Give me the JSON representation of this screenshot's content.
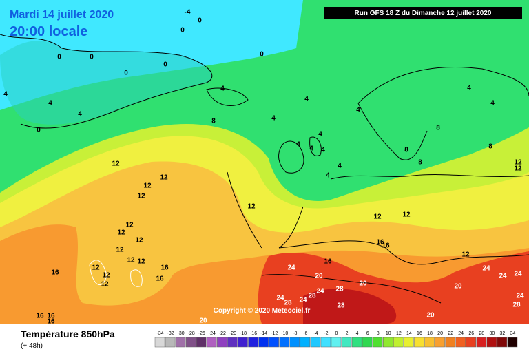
{
  "header": {
    "date": "Mardi 14 juillet 2020",
    "time": "20:00 locale",
    "run": "Run GFS 18 Z du Dimanche 12 juillet 2020",
    "copyright": "Copyright © 2020 Meteociel.fr"
  },
  "footer": {
    "title": "Température 850hPa",
    "lead": "(+ 48h)"
  },
  "scale": {
    "ticks": [
      -34,
      -32,
      -30,
      -28,
      -26,
      -24,
      -22,
      -20,
      -18,
      -16,
      -14,
      -12,
      -10,
      -8,
      -6,
      -4,
      -2,
      0,
      2,
      4,
      6,
      8,
      10,
      12,
      14,
      16,
      18,
      20,
      22,
      24,
      26,
      28,
      30,
      32,
      34
    ],
    "colors": [
      "#d8d8d8",
      "#b8b8b8",
      "#a070a8",
      "#805088",
      "#603068",
      "#b060c0",
      "#9040c0",
      "#6030c0",
      "#4020d0",
      "#2020e0",
      "#0030f0",
      "#0050ff",
      "#0070ff",
      "#0090ff",
      "#00b0ff",
      "#20c8ff",
      "#40e0ff",
      "#60f0f0",
      "#40e8c0",
      "#30e080",
      "#30d850",
      "#50e030",
      "#90e830",
      "#c0f030",
      "#e8f030",
      "#f8e030",
      "#f8c030",
      "#f8a030",
      "#f08020",
      "#f06020",
      "#e84020",
      "#d82020",
      "#b01010",
      "#800808",
      "#200000"
    ]
  },
  "map": {
    "isotherm_labels": [
      -4,
      0,
      0,
      0,
      0,
      0,
      0,
      0,
      4,
      4,
      4,
      0,
      4,
      4,
      4,
      8,
      4,
      4,
      4,
      4,
      4,
      4,
      4,
      4,
      4,
      8,
      8,
      8,
      8,
      12,
      12,
      12,
      12,
      12,
      12,
      12,
      12,
      12,
      12,
      12,
      12,
      12,
      12,
      12,
      12,
      12,
      12,
      16,
      16,
      16,
      16,
      16,
      16,
      24,
      20,
      20,
      24,
      28,
      24,
      28,
      24,
      28,
      28,
      24,
      24,
      20,
      24,
      24,
      28,
      20,
      20,
      16,
      16,
      16,
      12
    ]
  }
}
